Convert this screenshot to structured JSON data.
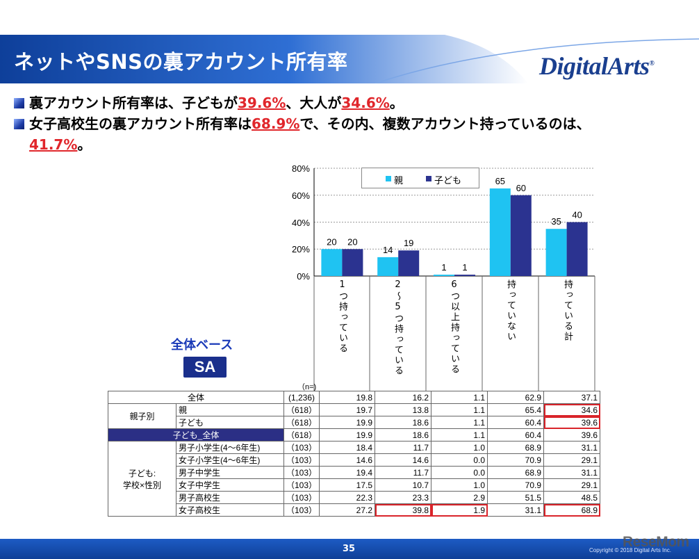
{
  "header": {
    "title": "ネットやSNSの裏アカウント所有率",
    "logo_text": "DigitalArts",
    "logo_reg": "®"
  },
  "bullets": [
    {
      "parts": [
        "裏アカウント所有率は、子どもが",
        "39.6%",
        "、大人が",
        "34.6%",
        "。"
      ]
    },
    {
      "parts": [
        "女子高校生の裏アカウント所有率は",
        "68.9%",
        "で、その内、複数アカウント持っているのは、"
      ],
      "cont": [
        "41.7%",
        "。"
      ]
    }
  ],
  "chart_data": {
    "type": "bar",
    "categories": [
      "1つ持っている",
      "2～5つ持っている",
      "6つ以上持っている",
      "持っていない",
      "持っている計"
    ],
    "series": [
      {
        "name": "親",
        "values": [
          20,
          14,
          1,
          65,
          35
        ],
        "color": "#1fc3f2"
      },
      {
        "name": "子ども",
        "values": [
          20,
          19,
          1,
          60,
          40
        ],
        "color": "#2b3390"
      }
    ],
    "ylim": [
      0,
      80
    ],
    "yticks": [
      "0%",
      "20%",
      "40%",
      "60%",
      "80%"
    ],
    "grid": true,
    "legend_position": "top"
  },
  "column_headers": [
    "1つ持っている",
    "2～5つ持っている",
    "6つ以上持っている",
    "持っていない",
    "持っている計"
  ],
  "base_label": "全体ベース",
  "sa_label": "SA",
  "n_label": "（n=)",
  "table": {
    "overall": {
      "label": "全体",
      "n": "(1,236)",
      "values": [
        "19.8",
        "16.2",
        "1.1",
        "62.9",
        "37.1"
      ]
    },
    "group1": {
      "label": "親子別",
      "rows": [
        {
          "label": "親",
          "n": "（618）",
          "values": [
            "19.7",
            "13.8",
            "1.1",
            "65.4",
            "34.6"
          ]
        },
        {
          "label": "子ども",
          "n": "（618）",
          "values": [
            "19.9",
            "18.6",
            "1.1",
            "60.4",
            "39.6"
          ]
        }
      ]
    },
    "child_total": {
      "label": "子ども_全体",
      "n": "（618）",
      "values": [
        "19.9",
        "18.6",
        "1.1",
        "60.4",
        "39.6"
      ]
    },
    "group2": {
      "label_line1": "子ども:",
      "label_line2": "学校×性別",
      "rows": [
        {
          "label": "男子小学生(4～6年生)",
          "n": "（103）",
          "values": [
            "18.4",
            "11.7",
            "1.0",
            "68.9",
            "31.1"
          ]
        },
        {
          "label": "女子小学生(4～6年生)",
          "n": "（103）",
          "values": [
            "14.6",
            "14.6",
            "0.0",
            "70.9",
            "29.1"
          ]
        },
        {
          "label": "男子中学生",
          "n": "（103）",
          "values": [
            "19.4",
            "11.7",
            "0.0",
            "68.9",
            "31.1"
          ]
        },
        {
          "label": "女子中学生",
          "n": "（103）",
          "values": [
            "17.5",
            "10.7",
            "1.0",
            "70.9",
            "29.1"
          ]
        },
        {
          "label": "男子高校生",
          "n": "（103）",
          "values": [
            "22.3",
            "23.3",
            "2.9",
            "51.5",
            "48.5"
          ]
        },
        {
          "label": "女子高校生",
          "n": "（103）",
          "values": [
            "27.2",
            "39.8",
            "1.9",
            "31.1",
            "68.9"
          ]
        }
      ]
    }
  },
  "footer": {
    "page": "35",
    "copyright": "Copyright © 2018 Digital Arts Inc.",
    "watermark": "ReseMom"
  },
  "colors": {
    "header_blue": "#1d5bc4",
    "accent_red": "#e0262b",
    "parent_bar": "#1fc3f2",
    "child_bar": "#2b3390"
  }
}
